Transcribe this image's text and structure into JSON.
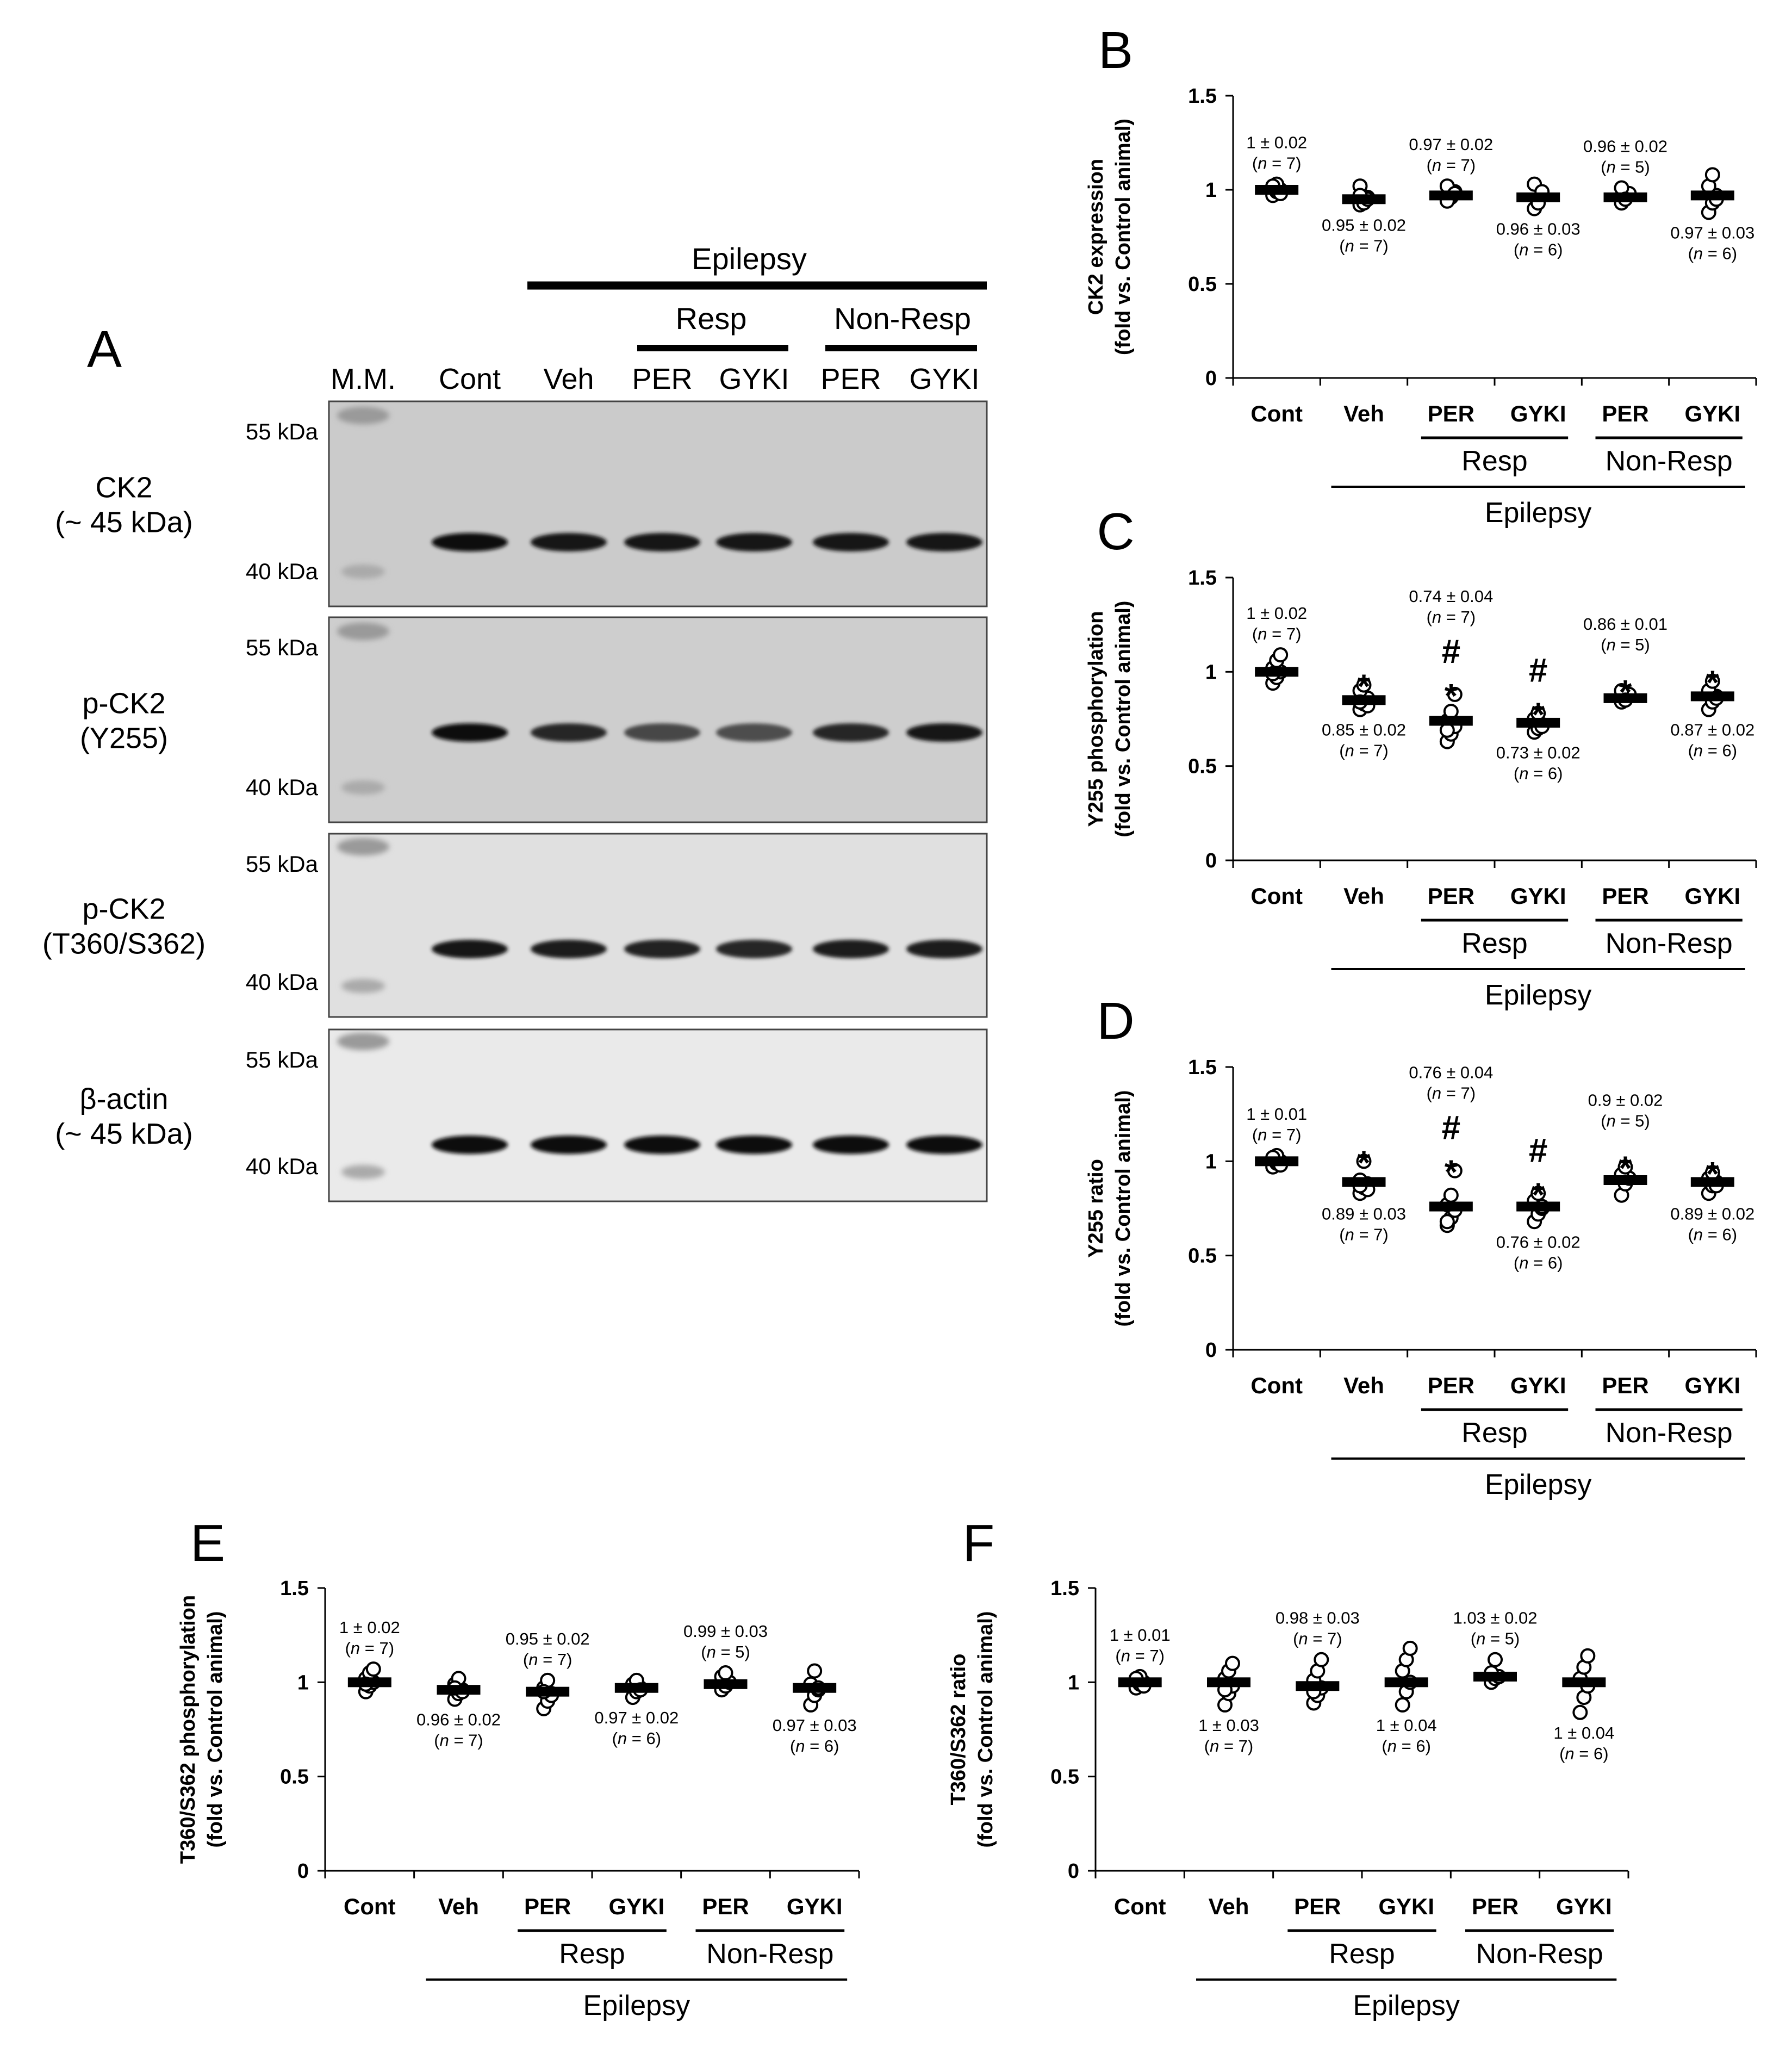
{
  "figure": {
    "panel_a": {
      "letter": "A",
      "header": {
        "epilepsy": "Epilepsy",
        "resp": "Resp",
        "non_resp": "Non-Resp",
        "lanes": [
          "M.M.",
          "Cont",
          "Veh",
          "PER",
          "GYKI",
          "PER",
          "GYKI"
        ]
      },
      "blots": [
        {
          "name_lines": [
            "CK2",
            "(~ 45 kDa)"
          ],
          "kda_top": "55 kDa",
          "kda_bottom": "40 kDa",
          "band_intensity": [
            0.95,
            0.93,
            0.92,
            0.92,
            0.92,
            0.93
          ]
        },
        {
          "name_lines": [
            "p-CK2",
            "(Y255)"
          ],
          "kda_top": "55 kDa",
          "kda_bottom": "40 kDa",
          "band_intensity": [
            0.95,
            0.85,
            0.72,
            0.7,
            0.85,
            0.92
          ]
        },
        {
          "name_lines": [
            "p-CK2",
            "(T360/S362)"
          ],
          "kda_top": "55 kDa",
          "kda_bottom": "40 kDa",
          "band_intensity": [
            0.9,
            0.88,
            0.87,
            0.85,
            0.88,
            0.88
          ]
        },
        {
          "name_lines": [
            "β-actin",
            "(~ 45 kDa)"
          ],
          "kda_top": "55 kDa",
          "kda_bottom": "40 kDa",
          "band_intensity": [
            0.95,
            0.95,
            0.95,
            0.95,
            0.95,
            0.95
          ]
        }
      ]
    }
  },
  "chart_data": [
    {
      "panel": "B",
      "type": "scatter",
      "ylabel_lines": [
        "CK2 expression",
        "(fold vs. Control animal)"
      ],
      "categories": [
        "Cont",
        "Veh",
        "PER",
        "GYKI",
        "PER",
        "GYKI"
      ],
      "groups": {
        "resp": "Resp",
        "non_resp": "Non-Resp",
        "epilepsy": "Epilepsy"
      },
      "ylim": [
        0,
        1.5
      ],
      "yticks": [
        "0",
        "0.5",
        "1",
        "1.5"
      ],
      "means": [
        1.0,
        0.95,
        0.97,
        0.96,
        0.96,
        0.97
      ],
      "points": [
        [
          0.97,
          0.99,
          1.0,
          1.01,
          1.03,
          0.98,
          1.02
        ],
        [
          0.92,
          0.94,
          0.96,
          1.02,
          0.93,
          0.95,
          0.97
        ],
        [
          0.95,
          0.97,
          0.99,
          1.02,
          0.96,
          0.98,
          0.94
        ],
        [
          0.9,
          0.94,
          0.97,
          1.03,
          0.93,
          0.99
        ],
        [
          0.93,
          0.96,
          0.98,
          1.01,
          0.95
        ],
        [
          0.88,
          0.93,
          0.97,
          1.02,
          1.08,
          0.95
        ]
      ],
      "annotations": [
        {
          "value": "1 ± 0.02",
          "n": "(n = 7)",
          "pos": "above",
          "sig": []
        },
        {
          "value": "0.95 ± 0.02",
          "n": "(n = 7)",
          "pos": "below",
          "sig": []
        },
        {
          "value": "0.97 ± 0.02",
          "n": "(n = 7)",
          "pos": "above",
          "sig": []
        },
        {
          "value": "0.96 ± 0.03",
          "n": "(n = 6)",
          "pos": "below",
          "sig": []
        },
        {
          "value": "0.96 ± 0.02",
          "n": "(n = 5)",
          "pos": "above",
          "sig": []
        },
        {
          "value": "0.97 ± 0.03",
          "n": "(n = 6)",
          "pos": "below",
          "sig": []
        }
      ]
    },
    {
      "panel": "C",
      "type": "scatter",
      "ylabel_lines": [
        "Y255 phosphorylation",
        "(fold vs. Control animal)"
      ],
      "categories": [
        "Cont",
        "Veh",
        "PER",
        "GYKI",
        "PER",
        "GYKI"
      ],
      "groups": {
        "resp": "Resp",
        "non_resp": "Non-Resp",
        "epilepsy": "Epilepsy"
      },
      "ylim": [
        0,
        1.5
      ],
      "yticks": [
        "0",
        "0.5",
        "1",
        "1.5"
      ],
      "means": [
        1.0,
        0.85,
        0.74,
        0.73,
        0.86,
        0.87
      ],
      "points": [
        [
          0.94,
          0.97,
          1.0,
          1.02,
          1.06,
          1.09,
          0.99
        ],
        [
          0.8,
          0.83,
          0.86,
          0.9,
          0.93,
          0.82,
          0.84
        ],
        [
          0.63,
          0.67,
          0.71,
          0.74,
          0.79,
          0.88,
          0.69
        ],
        [
          0.68,
          0.7,
          0.72,
          0.75,
          0.78,
          0.71
        ],
        [
          0.84,
          0.86,
          0.88,
          0.9,
          0.85
        ],
        [
          0.8,
          0.84,
          0.87,
          0.9,
          0.95,
          0.86
        ]
      ],
      "annotations": [
        {
          "value": "1 ± 0.02",
          "n": "(n = 7)",
          "pos": "above",
          "sig": []
        },
        {
          "value": "0.85 ± 0.02",
          "n": "(n = 7)",
          "pos": "below",
          "sig": [
            "*"
          ]
        },
        {
          "value": "0.74 ± 0.04",
          "n": "(n = 7)",
          "pos": "above",
          "sig": [
            "#",
            "*"
          ]
        },
        {
          "value": "0.73 ± 0.02",
          "n": "(n = 6)",
          "pos": "below",
          "sig": [
            "#",
            "*"
          ]
        },
        {
          "value": "0.86 ± 0.01",
          "n": "(n = 5)",
          "pos": "above",
          "sig": [
            "*"
          ]
        },
        {
          "value": "0.87 ± 0.02",
          "n": "(n = 6)",
          "pos": "below",
          "sig": [
            "*"
          ]
        }
      ]
    },
    {
      "panel": "D",
      "type": "scatter",
      "ylabel_lines": [
        "Y255 ratio",
        "(fold vs. Control animal)"
      ],
      "categories": [
        "Cont",
        "Veh",
        "PER",
        "GYKI",
        "PER",
        "GYKI"
      ],
      "groups": {
        "resp": "Resp",
        "non_resp": "Non-Resp",
        "epilepsy": "Epilepsy"
      },
      "ylim": [
        0,
        1.5
      ],
      "yticks": [
        "0",
        "0.5",
        "1",
        "1.5"
      ],
      "means": [
        1.0,
        0.89,
        0.76,
        0.76,
        0.9,
        0.89
      ],
      "points": [
        [
          0.97,
          0.99,
          1.0,
          1.01,
          1.03,
          0.98,
          1.02
        ],
        [
          0.83,
          0.86,
          0.88,
          0.9,
          1.0,
          0.85,
          0.87
        ],
        [
          0.66,
          0.7,
          0.74,
          0.77,
          0.82,
          0.95,
          0.68
        ],
        [
          0.68,
          0.72,
          0.75,
          0.79,
          0.83,
          0.76
        ],
        [
          0.82,
          0.88,
          0.91,
          0.93,
          0.97
        ],
        [
          0.83,
          0.87,
          0.89,
          0.91,
          0.94,
          0.87
        ]
      ],
      "annotations": [
        {
          "value": "1 ± 0.01",
          "n": "(n = 7)",
          "pos": "above",
          "sig": []
        },
        {
          "value": "0.89 ± 0.03",
          "n": "(n = 7)",
          "pos": "below",
          "sig": [
            "*"
          ]
        },
        {
          "value": "0.76 ± 0.04",
          "n": "(n = 7)",
          "pos": "above",
          "sig": [
            "#",
            "*"
          ]
        },
        {
          "value": "0.76 ± 0.02",
          "n": "(n = 6)",
          "pos": "below",
          "sig": [
            "#",
            "*"
          ]
        },
        {
          "value": "0.9 ± 0.02",
          "n": "(n = 5)",
          "pos": "above",
          "sig": [
            "*"
          ]
        },
        {
          "value": "0.89 ± 0.02",
          "n": "(n = 6)",
          "pos": "below",
          "sig": [
            "*"
          ]
        }
      ]
    },
    {
      "panel": "E",
      "type": "scatter",
      "ylabel_lines": [
        "T360/S362 phosphorylation",
        "(fold vs. Control animal)"
      ],
      "categories": [
        "Cont",
        "Veh",
        "PER",
        "GYKI",
        "PER",
        "GYKI"
      ],
      "groups": {
        "resp": "Resp",
        "non_resp": "Non-Resp",
        "epilepsy": "Epilepsy"
      },
      "ylim": [
        0,
        1.5
      ],
      "yticks": [
        "0",
        "0.5",
        "1",
        "1.5"
      ],
      "means": [
        1.0,
        0.96,
        0.95,
        0.97,
        0.99,
        0.97
      ],
      "points": [
        [
          0.95,
          0.98,
          1.0,
          1.02,
          1.05,
          1.07,
          0.99
        ],
        [
          0.91,
          0.94,
          0.96,
          0.99,
          1.02,
          0.95,
          0.97
        ],
        [
          0.86,
          0.9,
          0.94,
          0.97,
          1.01,
          0.93,
          0.95
        ],
        [
          0.92,
          0.95,
          0.97,
          0.99,
          1.01,
          0.96
        ],
        [
          0.96,
          0.98,
          1.0,
          1.03,
          1.05
        ],
        [
          0.88,
          0.93,
          0.96,
          0.99,
          1.06,
          0.97
        ]
      ],
      "annotations": [
        {
          "value": "1 ± 0.02",
          "n": "(n = 7)",
          "pos": "above",
          "sig": []
        },
        {
          "value": "0.96 ± 0.02",
          "n": "(n = 7)",
          "pos": "below",
          "sig": []
        },
        {
          "value": "0.95 ± 0.02",
          "n": "(n = 7)",
          "pos": "above",
          "sig": []
        },
        {
          "value": "0.97 ± 0.02",
          "n": "(n = 6)",
          "pos": "below",
          "sig": []
        },
        {
          "value": "0.99 ± 0.03",
          "n": "(n = 5)",
          "pos": "above",
          "sig": []
        },
        {
          "value": "0.97 ± 0.03",
          "n": "(n = 6)",
          "pos": "below",
          "sig": []
        }
      ]
    },
    {
      "panel": "F",
      "type": "scatter",
      "ylabel_lines": [
        "T360/S362 ratio",
        "(fold vs. Control animal)"
      ],
      "categories": [
        "Cont",
        "Veh",
        "PER",
        "GYKI",
        "PER",
        "GYKI"
      ],
      "groups": {
        "resp": "Resp",
        "non_resp": "Non-Resp",
        "epilepsy": "Epilepsy"
      },
      "ylim": [
        0,
        1.5
      ],
      "yticks": [
        "0",
        "0.5",
        "1",
        "1.5"
      ],
      "means": [
        1.0,
        1.0,
        0.98,
        1.0,
        1.03,
        1.0
      ],
      "points": [
        [
          0.97,
          0.99,
          1.0,
          1.01,
          1.03,
          0.98,
          1.02
        ],
        [
          0.88,
          0.94,
          0.98,
          1.02,
          1.06,
          1.1,
          0.96
        ],
        [
          0.89,
          0.93,
          0.97,
          1.01,
          1.06,
          1.12,
          0.95
        ],
        [
          0.88,
          0.95,
          1.0,
          1.06,
          1.12,
          1.18
        ],
        [
          1.0,
          1.02,
          1.03,
          1.05,
          1.12
        ],
        [
          0.84,
          0.92,
          0.98,
          1.02,
          1.08,
          1.14
        ]
      ],
      "annotations": [
        {
          "value": "1 ± 0.01",
          "n": "(n = 7)",
          "pos": "above",
          "sig": []
        },
        {
          "value": "1 ± 0.03",
          "n": "(n = 7)",
          "pos": "below",
          "sig": []
        },
        {
          "value": "0.98 ± 0.03",
          "n": "(n = 7)",
          "pos": "above",
          "sig": []
        },
        {
          "value": "1 ± 0.04",
          "n": "(n = 6)",
          "pos": "below",
          "sig": []
        },
        {
          "value": "1.03 ± 0.02",
          "n": "(n = 5)",
          "pos": "above",
          "sig": []
        },
        {
          "value": "1 ± 0.04",
          "n": "(n = 6)",
          "pos": "below",
          "sig": []
        }
      ]
    }
  ]
}
